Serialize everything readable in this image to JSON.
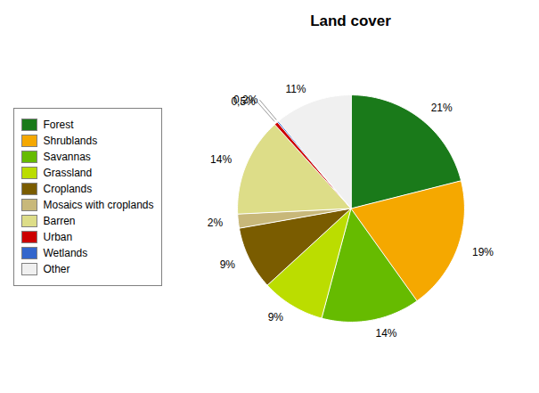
{
  "chart_data": {
    "type": "pie",
    "title": "Land cover",
    "categories": [
      "Forest",
      "Shrublands",
      "Savannas",
      "Grassland",
      "Croplands",
      "Mosaics with croplands",
      "Barren",
      "Urban",
      "Wetlands",
      "Other"
    ],
    "values": [
      21,
      19,
      14,
      9,
      9,
      2,
      14,
      0.5,
      0.2,
      11
    ],
    "value_labels": [
      "21%",
      "19%",
      "14%",
      "9%",
      "9%",
      "2%",
      "14%",
      "0,5%",
      "0,2%",
      "11%"
    ],
    "colors": [
      "#1a7a1a",
      "#f5a800",
      "#66bb00",
      "#bbdd00",
      "#7a5c00",
      "#c8b87a",
      "#dddd88",
      "#cc0000",
      "#3366cc",
      "#f0f0f0"
    ],
    "data_labels": true,
    "legend": "left"
  }
}
